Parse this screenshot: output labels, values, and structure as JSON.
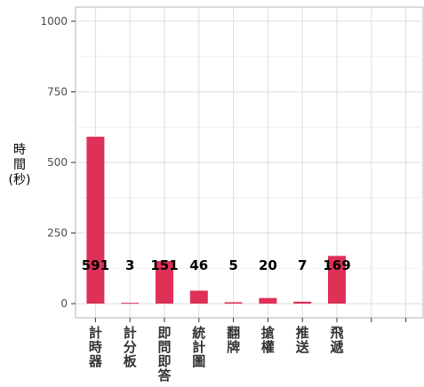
{
  "chart_data": {
    "type": "bar",
    "title": "",
    "xlabel": "",
    "ylabel": "時間(秒)",
    "ylim": [
      0,
      1000
    ],
    "yticks": [
      0,
      250,
      500,
      750,
      1000
    ],
    "grid": true,
    "legend": "none",
    "bar_color": "#df3058",
    "categories": [
      "計時器",
      "計分板",
      "即問即答",
      "統計圖",
      "翻牌",
      "搶權",
      "推送",
      "飛遞"
    ],
    "values": [
      591,
      3,
      151,
      46,
      5,
      20,
      7,
      169
    ],
    "data_labels": [
      "591",
      "3",
      "151",
      "46",
      "5",
      "20",
      "7",
      "169"
    ],
    "slots": 10
  }
}
